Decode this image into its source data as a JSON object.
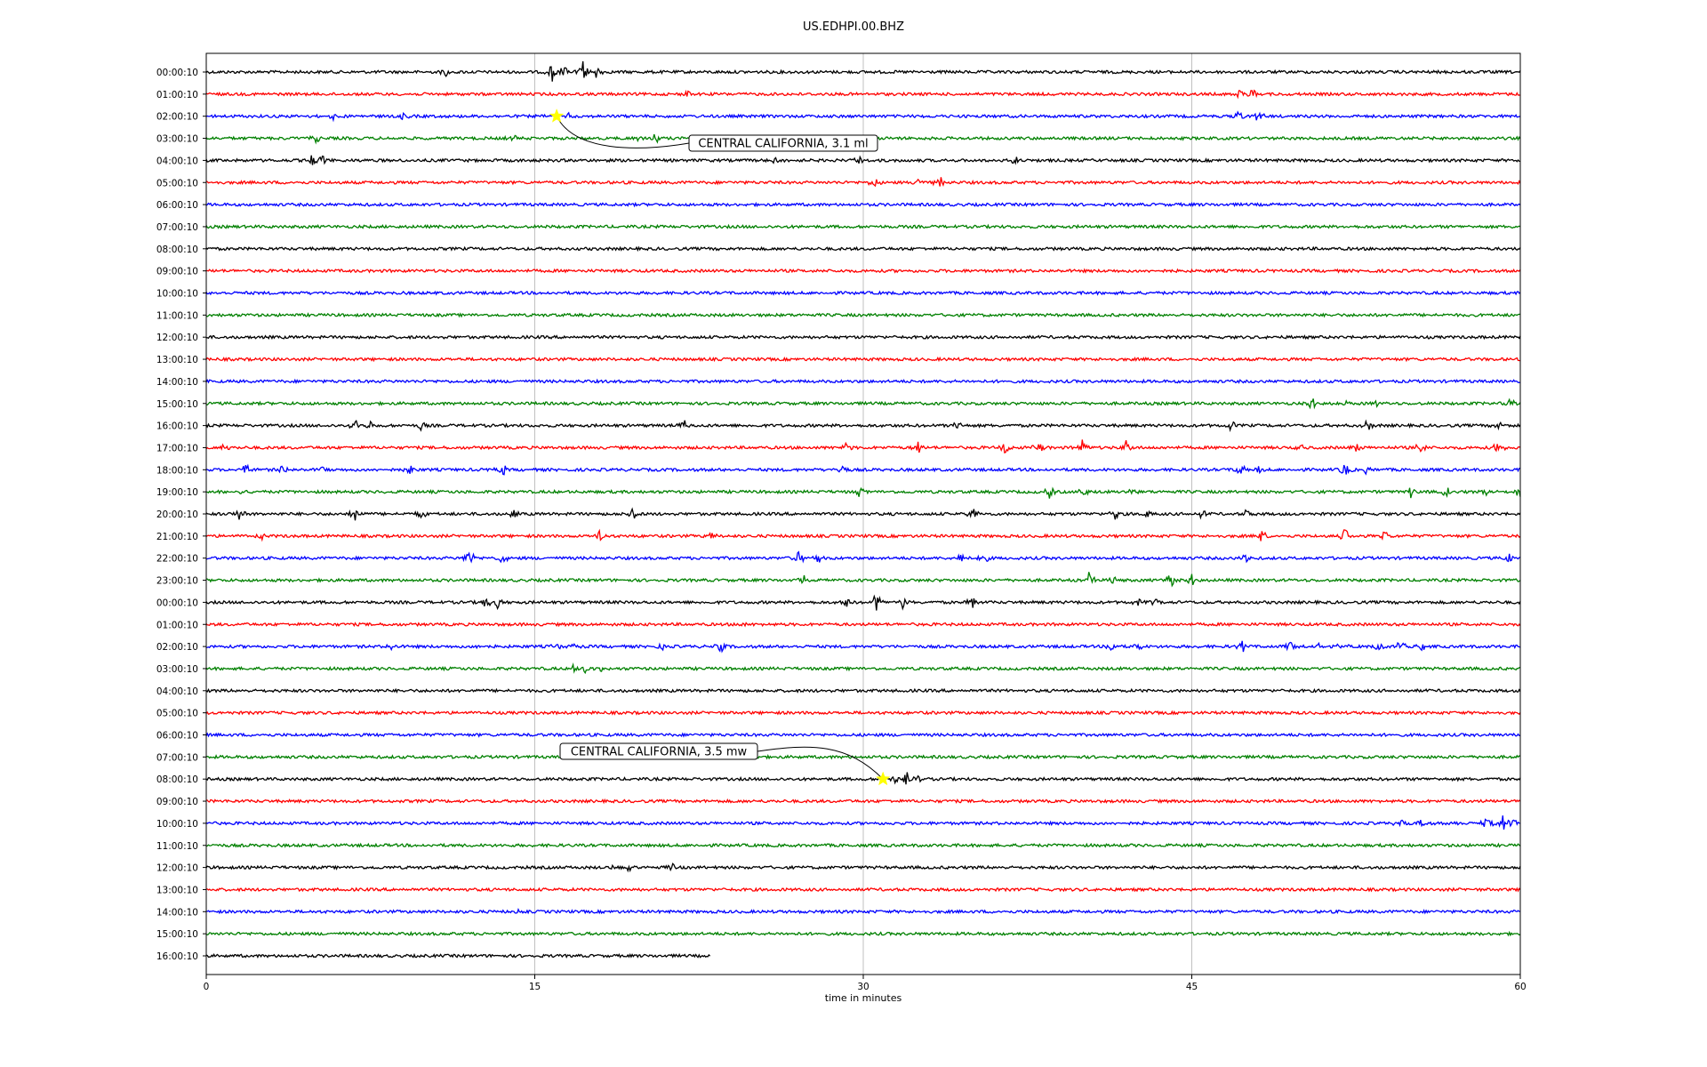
{
  "chart_data": {
    "type": "line",
    "title": "US.EDHPI.00.BHZ",
    "xlabel": "time in minutes",
    "ylabel": "",
    "xlim": [
      0,
      60
    ],
    "x_ticks": [
      0,
      15,
      30,
      45,
      60
    ],
    "x_tick_labels": [
      "0",
      "15",
      "30",
      "45",
      "60"
    ],
    "grid": "vertical",
    "trace_colors": [
      "#000000",
      "#ff0000",
      "#0000ff",
      "#008000"
    ],
    "traces": [
      {
        "label": "00:00:10",
        "end_minute": 60,
        "events": [
          [
            11,
            8
          ],
          [
            15.8,
            12
          ],
          [
            16.3,
            10
          ],
          [
            17.2,
            14
          ],
          [
            17.8,
            10
          ]
        ]
      },
      {
        "label": "01:00:10",
        "end_minute": 60,
        "events": [
          [
            22,
            5
          ],
          [
            47.2,
            9
          ],
          [
            47.8,
            8
          ]
        ]
      },
      {
        "label": "02:00:10",
        "end_minute": 60,
        "events": [
          [
            5.8,
            8
          ],
          [
            9,
            4
          ],
          [
            16.5,
            6
          ],
          [
            47.2,
            8
          ],
          [
            48,
            10
          ]
        ]
      },
      {
        "label": "03:00:10",
        "end_minute": 60,
        "events": [
          [
            5,
            5
          ],
          [
            14,
            5
          ],
          [
            19.8,
            7
          ],
          [
            20.5,
            6
          ]
        ]
      },
      {
        "label": "04:00:10",
        "end_minute": 60,
        "events": [
          [
            4.8,
            7
          ],
          [
            5.3,
            8
          ],
          [
            26,
            4
          ],
          [
            29.8,
            7
          ],
          [
            37,
            6
          ]
        ]
      },
      {
        "label": "05:00:10",
        "end_minute": 60,
        "events": [
          [
            30.5,
            8
          ],
          [
            32.5,
            6
          ],
          [
            33.5,
            9
          ]
        ]
      },
      {
        "label": "06:00:10",
        "end_minute": 60,
        "events": []
      },
      {
        "label": "07:00:10",
        "end_minute": 60,
        "events": []
      },
      {
        "label": "08:00:10",
        "end_minute": 60,
        "events": []
      },
      {
        "label": "09:00:10",
        "end_minute": 60,
        "events": []
      },
      {
        "label": "10:00:10",
        "end_minute": 60,
        "events": []
      },
      {
        "label": "11:00:10",
        "end_minute": 60,
        "events": []
      },
      {
        "label": "12:00:10",
        "end_minute": 60,
        "events": []
      },
      {
        "label": "13:00:10",
        "end_minute": 60,
        "events": []
      },
      {
        "label": "14:00:10",
        "end_minute": 60,
        "events": []
      },
      {
        "label": "15:00:10",
        "end_minute": 60,
        "events": [
          [
            50.5,
            9
          ],
          [
            52,
            7
          ],
          [
            53.5,
            5
          ],
          [
            59.5,
            8
          ]
        ]
      },
      {
        "label": "16:00:10",
        "end_minute": 60,
        "events": [
          [
            6.8,
            9
          ],
          [
            7.5,
            6
          ],
          [
            9.8,
            7
          ],
          [
            21.8,
            10
          ],
          [
            34.3,
            10
          ],
          [
            46.8,
            8
          ],
          [
            53,
            7
          ],
          [
            59,
            5
          ]
        ]
      },
      {
        "label": "17:00:10",
        "end_minute": 60,
        "events": [
          [
            0.8,
            6
          ],
          [
            29.2,
            9
          ],
          [
            32.5,
            8
          ],
          [
            36.5,
            9
          ],
          [
            38,
            8
          ],
          [
            40,
            10
          ],
          [
            42,
            9
          ],
          [
            50,
            6
          ],
          [
            52.5,
            7
          ],
          [
            55.5,
            10
          ],
          [
            59,
            9
          ]
        ]
      },
      {
        "label": "18:00:10",
        "end_minute": 60,
        "events": [
          [
            1.8,
            11
          ],
          [
            3.5,
            8
          ],
          [
            5.3,
            6
          ],
          [
            9.3,
            9
          ],
          [
            13.5,
            10
          ],
          [
            29,
            8
          ],
          [
            47.2,
            9
          ],
          [
            48,
            8
          ],
          [
            52,
            10
          ],
          [
            53,
            7
          ]
        ]
      },
      {
        "label": "19:00:10",
        "end_minute": 60,
        "events": [
          [
            1.5,
            4
          ],
          [
            29.8,
            7
          ],
          [
            38.5,
            8
          ],
          [
            40,
            9
          ],
          [
            42.3,
            7
          ],
          [
            55,
            9
          ],
          [
            56.6,
            7
          ],
          [
            58.5,
            6
          ],
          [
            60,
            10
          ]
        ]
      },
      {
        "label": "20:00:10",
        "end_minute": 60,
        "events": [
          [
            1.5,
            8
          ],
          [
            6.8,
            9
          ],
          [
            9.8,
            6
          ],
          [
            14,
            8
          ],
          [
            19.5,
            8
          ],
          [
            35,
            7
          ],
          [
            41.5,
            7
          ],
          [
            43,
            6
          ],
          [
            45.5,
            8
          ],
          [
            47.5,
            5
          ]
        ]
      },
      {
        "label": "21:00:10",
        "end_minute": 60,
        "events": [
          [
            2.5,
            5
          ],
          [
            18,
            9
          ],
          [
            23,
            6
          ],
          [
            48.2,
            8
          ],
          [
            52,
            11
          ],
          [
            53.8,
            7
          ]
        ]
      },
      {
        "label": "22:00:10",
        "end_minute": 60,
        "events": [
          [
            12,
            12
          ],
          [
            13.5,
            8
          ],
          [
            27.1,
            10
          ],
          [
            27.9,
            8
          ],
          [
            34.5,
            8
          ],
          [
            35.5,
            7
          ],
          [
            47.5,
            8
          ],
          [
            59.5,
            7
          ]
        ]
      },
      {
        "label": "23:00:10",
        "end_minute": 60,
        "events": [
          [
            27.2,
            9
          ],
          [
            40.3,
            11
          ],
          [
            41.5,
            8
          ],
          [
            44,
            10
          ],
          [
            45,
            8
          ]
        ]
      },
      {
        "label": "00:00:10",
        "end_minute": 60,
        "events": [
          [
            12.8,
            8
          ],
          [
            13.3,
            6
          ],
          [
            29.2,
            7
          ],
          [
            30.6,
            12
          ],
          [
            31.8,
            8
          ],
          [
            35,
            9
          ],
          [
            42.5,
            6
          ],
          [
            43.3,
            4
          ]
        ]
      },
      {
        "label": "01:00:10",
        "end_minute": 60,
        "events": [
          [
            24.5,
            4
          ]
        ]
      },
      {
        "label": "02:00:10",
        "end_minute": 60,
        "events": [
          [
            8.5,
            6
          ],
          [
            12.5,
            5
          ],
          [
            16,
            5
          ],
          [
            16.8,
            4
          ],
          [
            20.8,
            4
          ],
          [
            23.5,
            7
          ],
          [
            41.3,
            9
          ],
          [
            42.5,
            6
          ],
          [
            47.3,
            8
          ],
          [
            49.5,
            10
          ],
          [
            50.8,
            7
          ],
          [
            51.8,
            6
          ],
          [
            53.6,
            6
          ],
          [
            54.5,
            9
          ],
          [
            55.5,
            6
          ]
        ]
      },
      {
        "label": "03:00:10",
        "end_minute": 60,
        "events": [
          [
            16.8,
            5
          ],
          [
            17.3,
            6
          ],
          [
            18,
            5
          ]
        ]
      },
      {
        "label": "04:00:10",
        "end_minute": 60,
        "events": []
      },
      {
        "label": "05:00:10",
        "end_minute": 60,
        "events": []
      },
      {
        "label": "06:00:10",
        "end_minute": 60,
        "events": []
      },
      {
        "label": "07:00:10",
        "end_minute": 60,
        "events": []
      },
      {
        "label": "08:00:10",
        "end_minute": 60,
        "events": [
          [
            31.4,
            6
          ],
          [
            32,
            7
          ],
          [
            32.6,
            5
          ]
        ]
      },
      {
        "label": "09:00:10",
        "end_minute": 60,
        "events": []
      },
      {
        "label": "10:00:10",
        "end_minute": 60,
        "events": [
          [
            54.5,
            5
          ],
          [
            55.5,
            4
          ],
          [
            57,
            5
          ],
          [
            58.5,
            9
          ],
          [
            59.2,
            12
          ],
          [
            59.7,
            8
          ]
        ]
      },
      {
        "label": "11:00:10",
        "end_minute": 60,
        "events": []
      },
      {
        "label": "12:00:10",
        "end_minute": 60,
        "events": [
          [
            18.5,
            4
          ],
          [
            19.3,
            5
          ],
          [
            21.3,
            4
          ]
        ]
      },
      {
        "label": "13:00:10",
        "end_minute": 60,
        "events": []
      },
      {
        "label": "14:00:10",
        "end_minute": 60,
        "events": [
          [
            14.2,
            4
          ]
        ]
      },
      {
        "label": "15:00:10",
        "end_minute": 60,
        "events": []
      },
      {
        "label": "16:00:10",
        "end_minute": 23,
        "events": []
      }
    ],
    "annotations": [
      {
        "text": "CENTRAL CALIFORNIA, 3.1 ml",
        "trace_index": 2,
        "x": 16,
        "marker": "star",
        "marker_color": "#ffff00"
      },
      {
        "text": "CENTRAL CALIFORNIA, 3.5 mw",
        "trace_index": 32,
        "x": 30.9,
        "marker": "star",
        "marker_color": "#ffff00"
      }
    ]
  }
}
